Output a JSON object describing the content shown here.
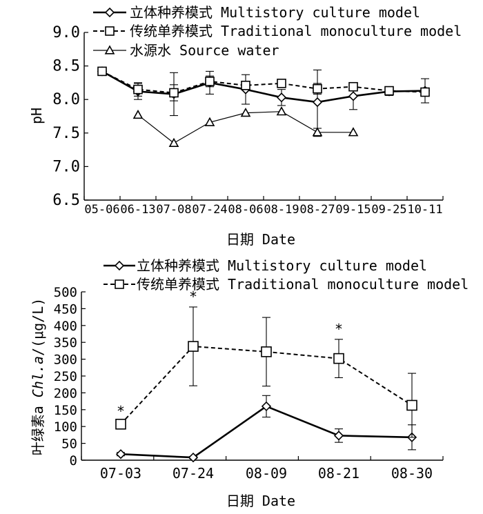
{
  "chart_data": [
    {
      "type": "line",
      "ylabel": "pH",
      "xlabel": "日期 Date",
      "ylim": [
        6.5,
        9.0
      ],
      "yticks": [
        "6.5",
        "7.0",
        "7.5",
        "8.0",
        "8.5",
        "9.0"
      ],
      "categories": [
        "05-06",
        "06-13",
        "07-08",
        "07-24",
        "08-06",
        "08-19",
        "08-27",
        "09-15",
        "09-25",
        "10-11"
      ],
      "legend": {
        "position": "top-left",
        "entries": [
          "立体种养模式 Multistory culture model",
          "传统单养模式 Traditional monoculture model",
          "水源水 Source water"
        ]
      },
      "series": [
        {
          "name": "立体种养模式 Multistory culture model",
          "marker": "diamond",
          "line": "solid",
          "values": [
            8.42,
            8.12,
            8.08,
            8.25,
            8.15,
            8.03,
            7.96,
            8.05,
            8.12,
            8.13
          ],
          "errors": [
            0.04,
            0.12,
            0.32,
            0.17,
            0.22,
            0.12,
            0.48,
            0.2,
            0.06,
            0.18
          ]
        },
        {
          "name": "传统单养模式 Traditional monoculture model",
          "marker": "square",
          "line": "dashed",
          "values": [
            8.42,
            8.15,
            8.1,
            8.27,
            8.21,
            8.24,
            8.16,
            8.19,
            8.13,
            8.11
          ],
          "errors": [
            0.04,
            0.1,
            0.12,
            0.08,
            0.06,
            0.05,
            0.08,
            0.04,
            0.06,
            0.04
          ]
        },
        {
          "name": "水源水 Source water",
          "marker": "triangle",
          "line": "solid-thin",
          "values": [
            null,
            7.77,
            7.35,
            7.66,
            7.8,
            7.82,
            7.51,
            7.51,
            null,
            null
          ],
          "errors": [
            null,
            0,
            0,
            0,
            0,
            0,
            0.06,
            0,
            null,
            null
          ]
        }
      ]
    },
    {
      "type": "line",
      "ylabel": "叶绿素a Chl.a/(μg/L)",
      "xlabel": "日期 Date",
      "ylim": [
        0,
        500
      ],
      "yticks": [
        "0",
        "50",
        "100",
        "150",
        "200",
        "250",
        "300",
        "350",
        "400",
        "450",
        "500"
      ],
      "categories": [
        "07-03",
        "07-24",
        "08-09",
        "08-21",
        "08-30"
      ],
      "legend": {
        "position": "top",
        "entries": [
          "立体种养模式 Multistory culture model",
          "传统单养模式 Traditional monoculture model"
        ]
      },
      "annotations": [
        {
          "text": "*",
          "category": "07-03"
        },
        {
          "text": "*",
          "category": "07-24"
        },
        {
          "text": "*",
          "category": "08-21"
        }
      ],
      "series": [
        {
          "name": "立体种养模式 Multistory culture model",
          "marker": "diamond",
          "line": "solid",
          "values": [
            18,
            8,
            160,
            73,
            68
          ],
          "errors": [
            5,
            3,
            32,
            20,
            37
          ]
        },
        {
          "name": "传统单养模式 Traditional monoculture model",
          "marker": "square",
          "line": "dashed",
          "values": [
            107,
            338,
            322,
            302,
            163
          ],
          "errors": [
            8,
            117,
            102,
            57,
            95
          ]
        }
      ]
    }
  ]
}
